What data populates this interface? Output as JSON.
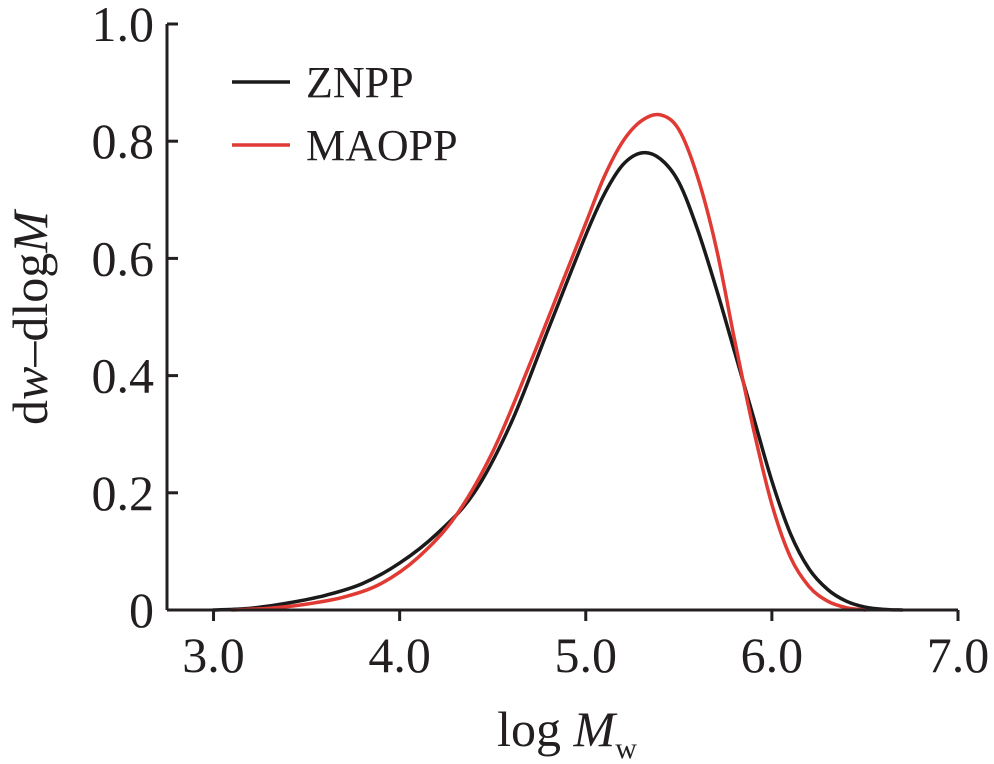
{
  "chart_data": {
    "type": "line",
    "xlabel": {
      "main": "log ",
      "var": "M",
      "sub": "w"
    },
    "ylabel": {
      "prefix": "d",
      "w": "w",
      "mid": "–dlog",
      "M": "M"
    },
    "xlim": [
      2.75,
      7.0
    ],
    "ylim": [
      0,
      1.0
    ],
    "xticks": [
      3.0,
      4.0,
      5.0,
      6.0,
      7.0
    ],
    "xtick_labels": [
      "3.0",
      "4.0",
      "5.0",
      "6.0",
      "7.0"
    ],
    "yticks": [
      0,
      0.2,
      0.4,
      0.6,
      0.8,
      1.0
    ],
    "ytick_labels": [
      "0",
      "0.2",
      "0.4",
      "0.6",
      "0.8",
      "1.0"
    ],
    "legend_position": "top-left",
    "grid": false,
    "series": [
      {
        "name": "ZNPP",
        "color": "#1a1a1a",
        "x": [
          3.0,
          3.2,
          3.4,
          3.6,
          3.8,
          4.0,
          4.2,
          4.4,
          4.6,
          4.8,
          5.0,
          5.1,
          5.2,
          5.3,
          5.4,
          5.5,
          5.6,
          5.7,
          5.8,
          5.9,
          6.0,
          6.1,
          6.2,
          6.3,
          6.4,
          6.5,
          6.6,
          6.7
        ],
        "y": [
          0.0,
          0.003,
          0.012,
          0.025,
          0.045,
          0.08,
          0.13,
          0.2,
          0.32,
          0.48,
          0.64,
          0.71,
          0.76,
          0.78,
          0.77,
          0.73,
          0.65,
          0.55,
          0.44,
          0.33,
          0.22,
          0.13,
          0.07,
          0.035,
          0.015,
          0.005,
          0.001,
          0.0
        ]
      },
      {
        "name": "MAOPP",
        "color": "#e03a34",
        "x": [
          3.1,
          3.3,
          3.5,
          3.7,
          3.9,
          4.1,
          4.3,
          4.5,
          4.7,
          4.9,
          5.0,
          5.1,
          5.2,
          5.3,
          5.4,
          5.5,
          5.6,
          5.7,
          5.8,
          5.9,
          6.0,
          6.1,
          6.2,
          6.3,
          6.4,
          6.5
        ],
        "y": [
          0.0,
          0.003,
          0.01,
          0.022,
          0.045,
          0.09,
          0.16,
          0.27,
          0.42,
          0.58,
          0.66,
          0.74,
          0.8,
          0.835,
          0.845,
          0.82,
          0.74,
          0.62,
          0.46,
          0.31,
          0.18,
          0.09,
          0.04,
          0.015,
          0.004,
          0.0
        ]
      }
    ]
  }
}
